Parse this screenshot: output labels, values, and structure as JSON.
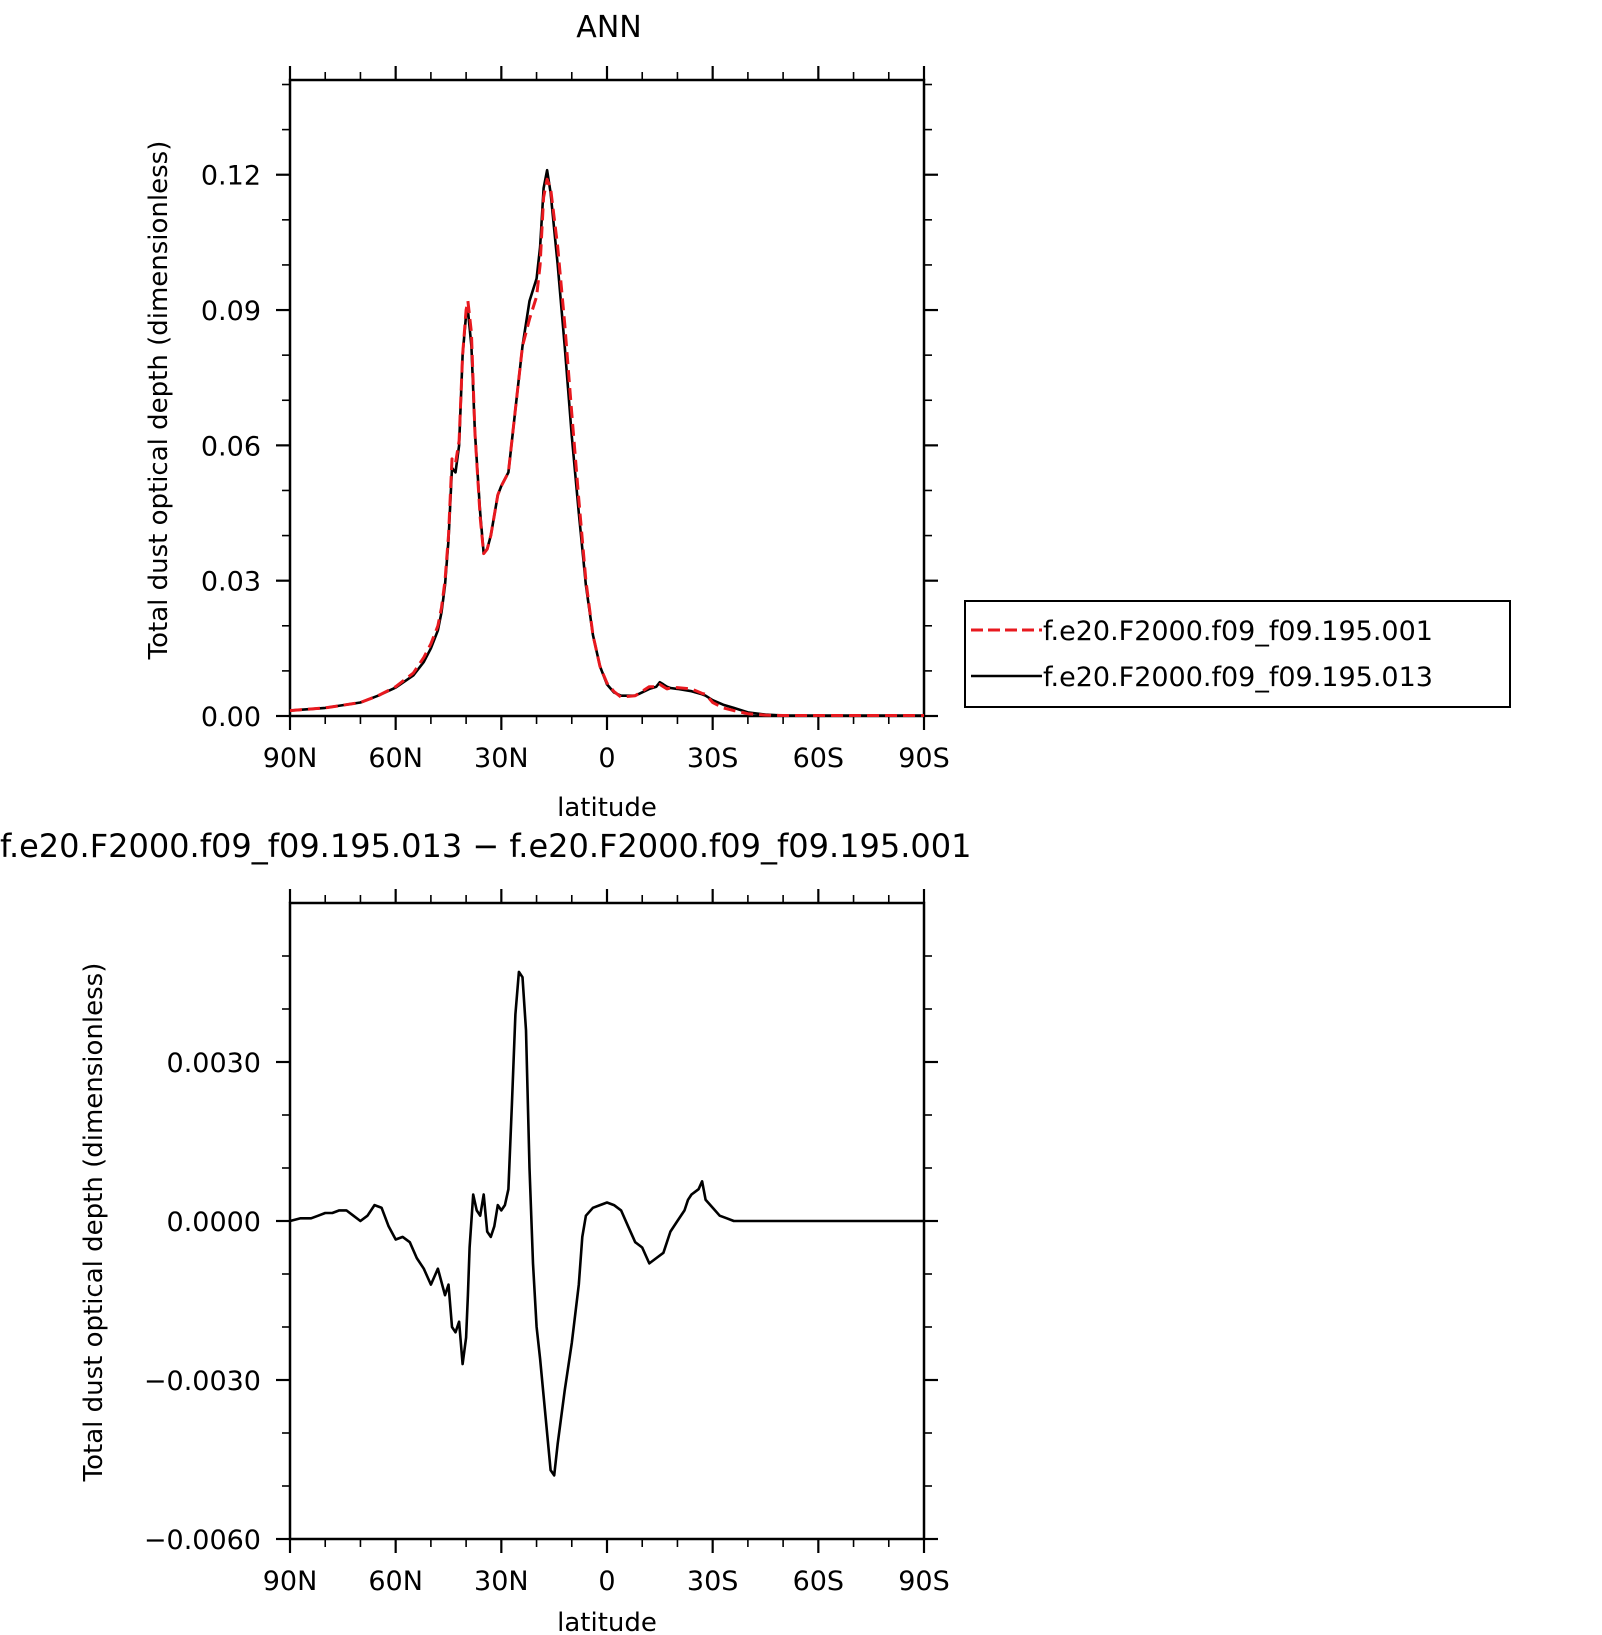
{
  "chart_data": [
    {
      "type": "line",
      "title": "ANN",
      "xlabel": "latitude",
      "ylabel": "Total dust optical depth (dimensionless)",
      "xlim": [
        90,
        -90
      ],
      "ylim": [
        0,
        0.141
      ],
      "xticks": [
        90,
        60,
        30,
        0,
        -30,
        -60,
        -90
      ],
      "xtick_labels": [
        "90N",
        "60N",
        "30N",
        "0",
        "30S",
        "60S",
        "90S"
      ],
      "yticks": [
        0,
        0.03,
        0.06,
        0.09,
        0.12
      ],
      "ytick_labels": [
        "0.00",
        "0.03",
        "0.06",
        "0.09",
        "0.12"
      ],
      "legend_position": "right",
      "series": [
        {
          "name": "f.e20.F2000.f09_f09.195.001",
          "color": "#e8191f",
          "dash": "dashed",
          "x": [
            90,
            80,
            70,
            65,
            60,
            55,
            52,
            50,
            48,
            47,
            46,
            45,
            44,
            43,
            42,
            41,
            40,
            39.5,
            38.5,
            37.5,
            36,
            35,
            34,
            33,
            31,
            30,
            28,
            26,
            24,
            22,
            20,
            19,
            18,
            17,
            16,
            14,
            12,
            10,
            8,
            6,
            4,
            2,
            0,
            -2,
            -4,
            -8,
            -12,
            -14,
            -15,
            -16,
            -17,
            -18,
            -20,
            -24,
            -27,
            -28,
            -30,
            -33,
            -36,
            -40,
            -45,
            -50,
            -60,
            -70,
            -80,
            -90
          ],
          "y": [
            0.0012,
            0.0018,
            0.003,
            0.0045,
            0.0065,
            0.0095,
            0.013,
            0.016,
            0.02,
            0.024,
            0.03,
            0.04,
            0.057,
            0.056,
            0.061,
            0.08,
            0.09,
            0.092,
            0.085,
            0.063,
            0.044,
            0.036,
            0.037,
            0.04,
            0.049,
            0.051,
            0.054,
            0.068,
            0.082,
            0.088,
            0.093,
            0.1,
            0.115,
            0.119,
            0.117,
            0.104,
            0.087,
            0.067,
            0.048,
            0.03,
            0.018,
            0.011,
            0.0073,
            0.0054,
            0.0042,
            0.0045,
            0.0065,
            0.0065,
            0.007,
            0.0065,
            0.006,
            0.0062,
            0.0063,
            0.006,
            0.005,
            0.0048,
            0.003,
            0.0018,
            0.0012,
            0.0005,
            0.0002,
            0.0001,
            0.0001,
            0.0001,
            0.0001,
            0.0001
          ]
        },
        {
          "name": "f.e20.F2000.f09_f09.195.013",
          "color": "#000000",
          "dash": "solid",
          "x": [
            90,
            80,
            70,
            65,
            60,
            55,
            52,
            50,
            48,
            47,
            46,
            45,
            44,
            43,
            42,
            41,
            40,
            39.5,
            38.5,
            37.5,
            36,
            35,
            34,
            33,
            31,
            30,
            28,
            26,
            24,
            22,
            20,
            19,
            18,
            17,
            16,
            14,
            12,
            10,
            8,
            6,
            4,
            2,
            0,
            -2,
            -4,
            -8,
            -12,
            -14,
            -15,
            -16,
            -17,
            -18,
            -20,
            -24,
            -27,
            -28,
            -30,
            -33,
            -36,
            -40,
            -45,
            -50,
            -60,
            -70,
            -80,
            -90
          ],
          "y": [
            0.0012,
            0.0018,
            0.003,
            0.0045,
            0.0063,
            0.009,
            0.012,
            0.015,
            0.019,
            0.023,
            0.029,
            0.039,
            0.055,
            0.054,
            0.06,
            0.08,
            0.089,
            0.09,
            0.082,
            0.063,
            0.045,
            0.036,
            0.037,
            0.04,
            0.049,
            0.051,
            0.054,
            0.068,
            0.082,
            0.092,
            0.097,
            0.104,
            0.117,
            0.121,
            0.116,
            0.1,
            0.082,
            0.062,
            0.045,
            0.029,
            0.018,
            0.011,
            0.007,
            0.0052,
            0.0045,
            0.0045,
            0.006,
            0.0065,
            0.0075,
            0.007,
            0.0065,
            0.0062,
            0.006,
            0.0055,
            0.0048,
            0.0045,
            0.0035,
            0.0025,
            0.0018,
            0.0008,
            0.0003,
            0.0001,
            0.0001,
            0.0001,
            0.0001,
            0.0001
          ]
        }
      ]
    },
    {
      "type": "line",
      "title": "f.e20.F2000.f09_f09.195.013 − f.e20.F2000.f09_f09.195.001",
      "xlabel": "latitude",
      "ylabel": "Total dust optical depth (dimensionless)",
      "xlim": [
        90,
        -90
      ],
      "ylim": [
        -0.006,
        0.006
      ],
      "xticks": [
        90,
        60,
        30,
        0,
        -30,
        -60,
        -90
      ],
      "xtick_labels": [
        "90N",
        "60N",
        "30N",
        "0",
        "30S",
        "60S",
        "90S"
      ],
      "yticks": [
        -0.006,
        -0.003,
        0,
        0.003
      ],
      "ytick_labels": [
        "−0.0060",
        "−0.0030",
        "0.0000",
        "0.0030"
      ],
      "series": [
        {
          "color": "#000000",
          "dash": "solid",
          "x": [
            90,
            87,
            84,
            82,
            80,
            78,
            76,
            74,
            72,
            70,
            68,
            66,
            64,
            62,
            60,
            58,
            56,
            54,
            52,
            50,
            48,
            46,
            45,
            44,
            43,
            42,
            41,
            40,
            39.5,
            39,
            38,
            37,
            36,
            35,
            34,
            33,
            32,
            31,
            30,
            29,
            28,
            27,
            26,
            25,
            24,
            23,
            22,
            21,
            20,
            19,
            18,
            17,
            16,
            15,
            14,
            12,
            10,
            8,
            7,
            6,
            4,
            2,
            0,
            -2,
            -4,
            -6,
            -8,
            -10,
            -12,
            -14,
            -16,
            -18,
            -20,
            -22,
            -23,
            -24,
            -25,
            -26,
            -27,
            -28,
            -30,
            -32,
            -34,
            -36,
            -38,
            -40,
            -41,
            -42,
            -44,
            -48,
            -52,
            -56,
            -60,
            -70,
            -80,
            -90
          ],
          "y": [
            0.0,
            5e-05,
            5e-05,
            0.0001,
            0.00015,
            0.00015,
            0.0002,
            0.0002,
            0.0001,
            0.0,
            0.0001,
            0.0003,
            0.00025,
            -0.0001,
            -0.00035,
            -0.0003,
            -0.0004,
            -0.0007,
            -0.0009,
            -0.0012,
            -0.0009,
            -0.0014,
            -0.0012,
            -0.002,
            -0.0021,
            -0.0019,
            -0.0027,
            -0.0022,
            -0.0014,
            -0.0005,
            0.0005,
            0.0002,
            0.0001,
            0.0005,
            -0.0002,
            -0.0003,
            -0.0001,
            0.0003,
            0.0002,
            0.0003,
            0.0006,
            0.0022,
            0.0039,
            0.0047,
            0.0046,
            0.0036,
            0.001,
            -0.0008,
            -0.002,
            -0.0026,
            -0.0033,
            -0.004,
            -0.0047,
            -0.0048,
            -0.0042,
            -0.0032,
            -0.0023,
            -0.0012,
            -0.0003,
            0.0001,
            0.00025,
            0.0003,
            0.00035,
            0.0003,
            0.0002,
            -0.0001,
            -0.0004,
            -0.0005,
            -0.0008,
            -0.0007,
            -0.0006,
            -0.0002,
            0.0,
            0.0002,
            0.0004,
            0.0005,
            0.00055,
            0.0006,
            0.00075,
            0.0004,
            0.00025,
            0.0001,
            5e-05,
            0.0,
            0.0,
            0.0,
            0.0,
            0.0,
            0.0,
            0.0,
            0.0,
            0.0,
            0.0,
            0.0,
            0.0,
            0.0
          ]
        }
      ]
    }
  ]
}
